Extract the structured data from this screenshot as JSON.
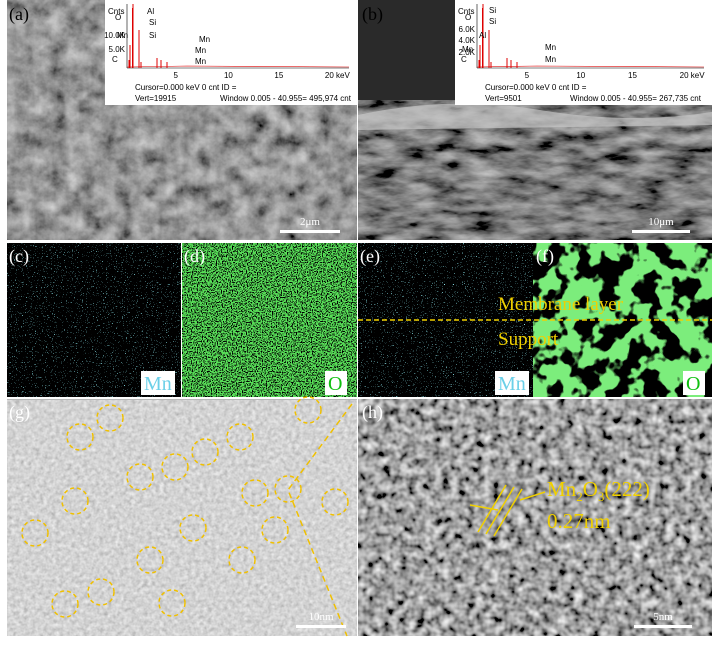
{
  "panels": {
    "a": {
      "label": "(a)",
      "scale_bar": "2μm",
      "eds": {
        "y_axis_title": "Cnts",
        "yticks": [
          "10.0K",
          "5.0K"
        ],
        "xticks": [
          "5",
          "10",
          "15",
          "20 keV"
        ],
        "peaks": [
          "O",
          "Al",
          "Si",
          "Mn",
          "Si",
          "Mn",
          "Mn",
          "Mn",
          "C"
        ],
        "cursor": "Cursor=0.000 keV   0 cnt  ID =",
        "vert": "Vert=19915",
        "window": "Window 0.005 - 40.955=   495,974 cnt"
      }
    },
    "b": {
      "label": "(b)",
      "scale_bar": "10μm",
      "eds": {
        "y_axis_title": "Cnts",
        "yticks": [
          "6.0K",
          "4.0K",
          "2.0K"
        ],
        "xticks": [
          "5",
          "10",
          "15",
          "20 keV"
        ],
        "peaks": [
          "O",
          "Si",
          "Si",
          "Al",
          "Mn",
          "Mn",
          "Mn",
          "C"
        ],
        "cursor": "Cursor=0.000 keV   0 cnt  ID =",
        "vert": "Vert=9501",
        "window": "Window 0.005 - 40.955=   267,735 cnt"
      }
    },
    "c": {
      "label": "(c)",
      "element": "Mn"
    },
    "d": {
      "label": "(d)",
      "element": "O"
    },
    "e": {
      "label": "(e)",
      "element": "Mn"
    },
    "f": {
      "label": "(f)",
      "element": "O"
    },
    "g": {
      "label": "(g)",
      "scale_bar": "10nm"
    },
    "h": {
      "label": "(h)",
      "scale_bar": "5nm",
      "formula": [
        "Mn",
        "2",
        "O",
        "3",
        "(222)"
      ],
      "d_spacing": "0.27nm"
    }
  },
  "layers": {
    "top": "Membrane layer",
    "bottom": "Support"
  }
}
